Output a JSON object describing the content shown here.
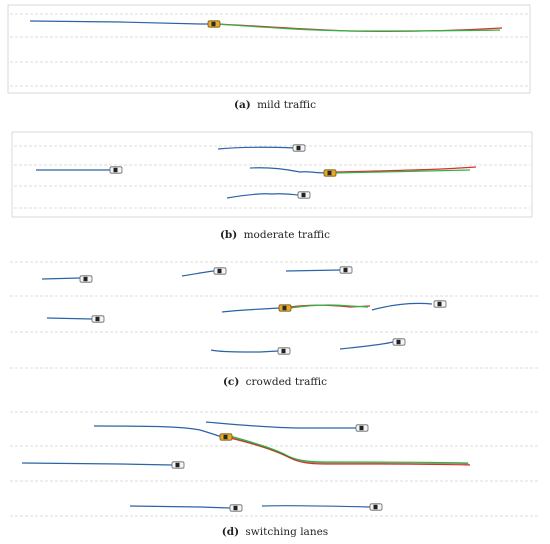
{
  "panels": [
    {
      "id": "a",
      "letter": "(a)",
      "text": "mild traffic"
    },
    {
      "id": "b",
      "letter": "(b)",
      "text": "moderate traffic"
    },
    {
      "id": "c",
      "letter": "(c)",
      "text": "crowded traffic"
    },
    {
      "id": "d",
      "letter": "(d)",
      "text": "switching lanes"
    }
  ],
  "colors": {
    "lane_line": "#b5b5b5",
    "frame": "#c8c8c8",
    "history": "#2a63a8",
    "prediction": "#2db34a",
    "ground_truth": "#d9302b",
    "ego_car": "#e2a623",
    "other_car": "#f2f2f2",
    "car_outline": "#555555"
  }
}
